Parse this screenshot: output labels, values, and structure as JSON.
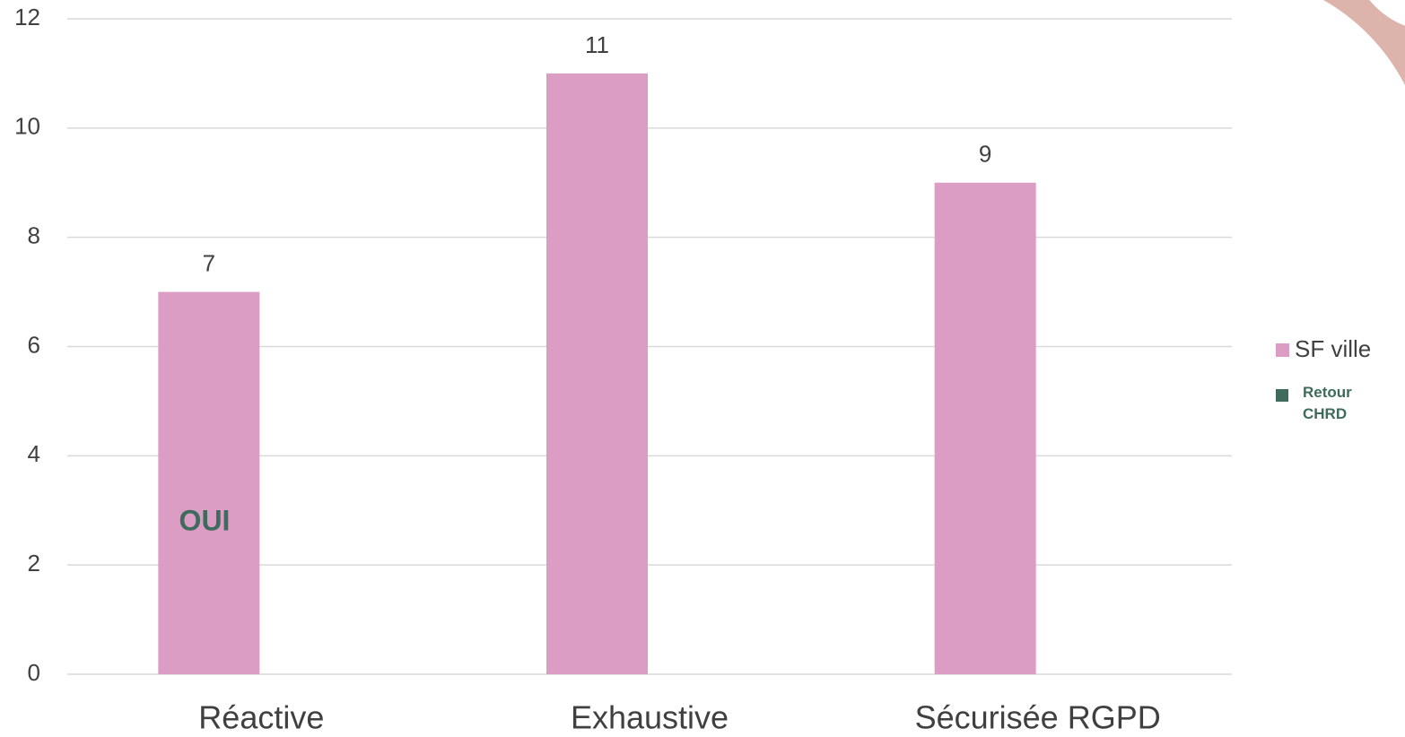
{
  "chart_data": {
    "type": "bar",
    "categories": [
      "Réactive",
      "Exhaustive",
      "Sécurisée RGPD"
    ],
    "series": [
      {
        "name": "SF ville",
        "color": "#dc9dc5",
        "values": [
          7,
          11,
          9
        ]
      },
      {
        "name": "Retour CHRD",
        "color": "#3e6b5b",
        "values": [
          null,
          null,
          null
        ]
      }
    ],
    "annotations": [
      "OUI"
    ],
    "ylim": [
      0,
      12
    ],
    "yticks": [
      0,
      2,
      4,
      6,
      8,
      10,
      12
    ],
    "grid": true,
    "legend": "right"
  }
}
